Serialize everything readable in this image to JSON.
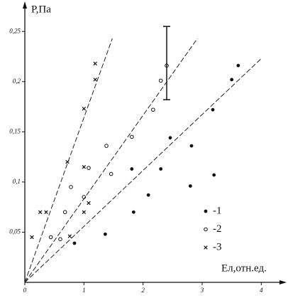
{
  "chart_data": {
    "type": "scatter",
    "ylabel": "P,Па",
    "xlabel": "Ел,отн.ед.",
    "xlim": [
      0,
      4.38
    ],
    "ylim": [
      0,
      0.27
    ],
    "xticks": [
      0,
      1,
      2,
      3,
      4
    ],
    "yticks": [
      {
        "value": 0.05,
        "label": "0,05"
      },
      {
        "value": 0.1,
        "label": "0,1"
      },
      {
        "value": 0.15,
        "label": "0,15"
      },
      {
        "value": 0.2,
        "label": "0,2"
      },
      {
        "value": 0.25,
        "label": "0,25"
      }
    ],
    "series": [
      {
        "name": "-1",
        "marker": "dot",
        "color": "#111111",
        "x": [
          0.84,
          1.36,
          1.84,
          1.81,
          2.3,
          2.09,
          2.46,
          2.8,
          2.82,
          3.2,
          3.18,
          3.5,
          3.61
        ],
        "values": [
          0.039,
          0.048,
          0.07,
          0.113,
          0.113,
          0.087,
          0.144,
          0.096,
          0.136,
          0.107,
          0.172,
          0.202,
          0.216
        ]
      },
      {
        "name": "-2",
        "marker": "circle",
        "color": "#111111",
        "x": [
          0.44,
          0.78,
          0.68,
          1.0,
          1.38,
          1.46,
          1.81,
          2.17,
          2.3,
          2.4,
          1.08,
          0.6
        ],
        "values": [
          0.045,
          0.095,
          0.07,
          0.085,
          0.136,
          0.108,
          0.145,
          0.172,
          0.201,
          0.216,
          0.114,
          0.043
        ]
      },
      {
        "name": "-3",
        "marker": "cross",
        "color": "#111111",
        "x": [
          0.26,
          0.36,
          0.12,
          0.76,
          1.0,
          1.0,
          1.08,
          1.0,
          1.19,
          1.19,
          0.72
        ],
        "values": [
          0.07,
          0.07,
          0.045,
          0.046,
          0.115,
          0.07,
          0.079,
          0.173,
          0.202,
          0.218,
          0.12
        ]
      }
    ],
    "fit_lines": [
      {
        "x": [
          0,
          4
        ],
        "values": [
          0,
          0.223
        ]
      },
      {
        "x": [
          0,
          2.92
        ],
        "values": [
          0,
          0.243
        ]
      },
      {
        "x": [
          0,
          1.48
        ],
        "values": [
          0,
          0.243
        ]
      }
    ],
    "error_bar": {
      "x": 2.4,
      "low": 0.182,
      "high": 0.255
    }
  }
}
